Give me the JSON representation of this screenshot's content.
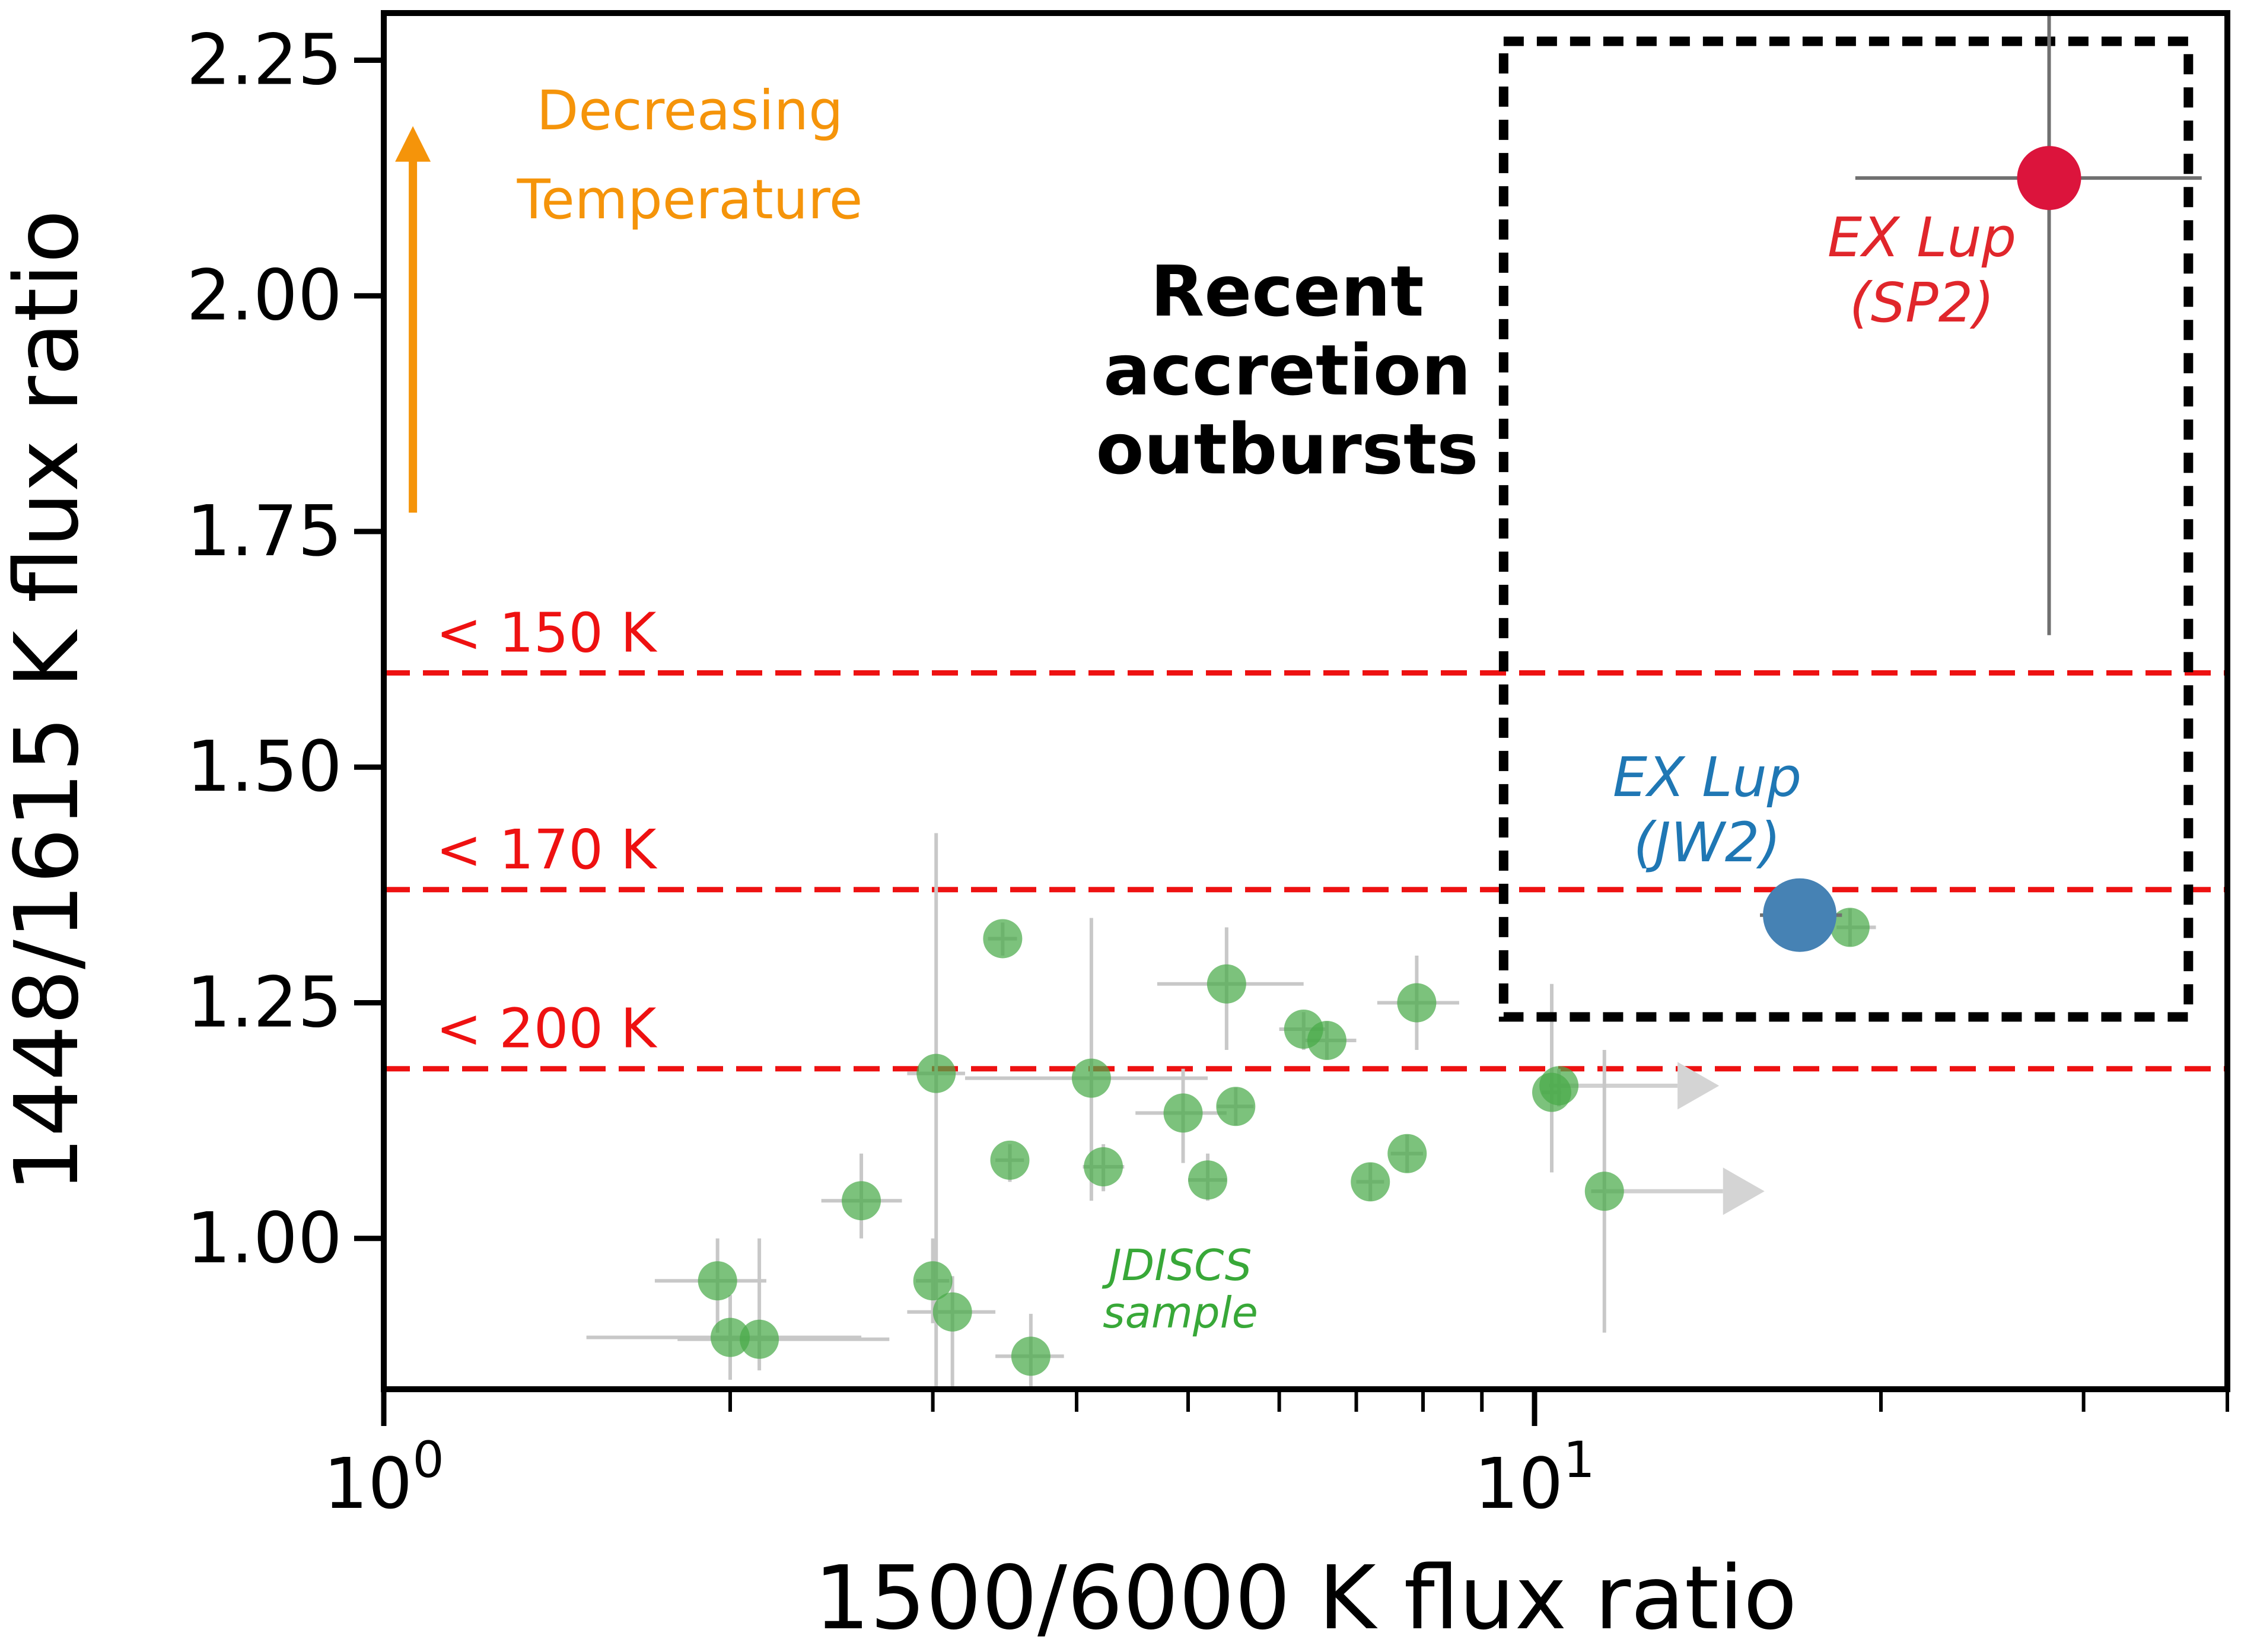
{
  "chart_data": {
    "type": "scatter",
    "title": "",
    "xlabel": "1500/6000 K flux ratio",
    "ylabel": "1448/1615 K flux ratio",
    "xscale": "log",
    "xlim": [
      1.0,
      40.0
    ],
    "ylim": [
      0.84,
      2.3
    ],
    "xticks_major": [
      {
        "value": 1,
        "label": "10",
        "sup": "0"
      },
      {
        "value": 10,
        "label": "10",
        "sup": "1"
      }
    ],
    "xticks_minor": [
      2,
      3,
      4,
      5,
      6,
      7,
      8,
      9,
      20,
      30,
      40
    ],
    "yticks": [
      {
        "value": 1.0,
        "label": "1.00"
      },
      {
        "value": 1.25,
        "label": "1.25"
      },
      {
        "value": 1.5,
        "label": "1.50"
      },
      {
        "value": 1.75,
        "label": "1.75"
      },
      {
        "value": 2.0,
        "label": "2.00"
      },
      {
        "value": 2.25,
        "label": "2.25"
      }
    ],
    "grid": false,
    "colors": {
      "sample": "#4aaa4a",
      "sample_errorbar": "#c8c8c8",
      "sp2": "#dc143c",
      "sp2_text": "#e0262b",
      "jw2": "#4682b4",
      "jw2_text": "#1f77b4",
      "threshold": "#ee1111",
      "arrow": "#f5940a",
      "box": "#000000",
      "sample_text": "#38a838"
    },
    "thresholds": [
      {
        "y": 1.6,
        "label": "< 150 K"
      },
      {
        "y": 1.37,
        "label": "< 170 K"
      },
      {
        "y": 1.18,
        "label": "< 200 K"
      }
    ],
    "sample_label": [
      "JDISCS",
      "sample"
    ],
    "sample": [
      {
        "x": 1.95,
        "y": 0.955,
        "xlo": 1.72,
        "xhi": 2.15,
        "ylo": 0.9,
        "yhi": 1.0
      },
      {
        "x": 2.0,
        "y": 0.895,
        "xlo": 1.5,
        "xhi": 2.6,
        "ylo": 0.85,
        "yhi": 0.94
      },
      {
        "x": 2.12,
        "y": 0.893,
        "xlo": 1.8,
        "xhi": 2.75,
        "ylo": 0.86,
        "yhi": 1.0
      },
      {
        "x": 2.6,
        "y": 1.04,
        "xlo": 2.4,
        "xhi": 2.82,
        "ylo": 1.0,
        "yhi": 1.09
      },
      {
        "x": 3.0,
        "y": 0.955,
        "xlo": 2.9,
        "xhi": 3.1,
        "ylo": 0.91,
        "yhi": 1.0
      },
      {
        "x": 3.02,
        "y": 1.175,
        "xlo": 2.85,
        "xhi": 3.2,
        "ylo": 0.84,
        "yhi": 1.43
      },
      {
        "x": 3.12,
        "y": 0.922,
        "xlo": 2.85,
        "xhi": 3.4,
        "ylo": 0.84,
        "yhi": 0.96
      },
      {
        "x": 3.45,
        "y": 1.318,
        "xlo": 3.35,
        "xhi": 3.55,
        "ylo": 1.3,
        "yhi": 1.335
      },
      {
        "x": 3.5,
        "y": 1.083,
        "xlo": 3.4,
        "xhi": 3.6,
        "ylo": 1.06,
        "yhi": 1.1
      },
      {
        "x": 3.65,
        "y": 0.875,
        "xlo": 3.4,
        "xhi": 3.9,
        "ylo": 0.84,
        "yhi": 0.92
      },
      {
        "x": 4.12,
        "y": 1.17,
        "xlo": 3.2,
        "xhi": 5.2,
        "ylo": 1.04,
        "yhi": 1.34
      },
      {
        "x": 4.22,
        "y": 1.076,
        "xlo": 4.05,
        "xhi": 4.4,
        "ylo": 1.05,
        "yhi": 1.1
      },
      {
        "x": 4.95,
        "y": 1.133,
        "xlo": 4.5,
        "xhi": 5.4,
        "ylo": 1.08,
        "yhi": 1.18
      },
      {
        "x": 5.2,
        "y": 1.062,
        "xlo": 5.0,
        "xhi": 5.4,
        "ylo": 1.04,
        "yhi": 1.09
      },
      {
        "x": 5.4,
        "y": 1.27,
        "xlo": 4.7,
        "xhi": 6.3,
        "ylo": 1.2,
        "yhi": 1.33
      },
      {
        "x": 5.5,
        "y": 1.14,
        "xlo": 5.3,
        "xhi": 5.7,
        "ylo": 1.12,
        "yhi": 1.16
      },
      {
        "x": 6.3,
        "y": 1.222,
        "xlo": 6.0,
        "xhi": 6.6,
        "ylo": 1.2,
        "yhi": 1.24
      },
      {
        "x": 6.6,
        "y": 1.21,
        "xlo": 6.3,
        "xhi": 7.0,
        "ylo": 1.19,
        "yhi": 1.23
      },
      {
        "x": 7.2,
        "y": 1.06,
        "xlo": 7.0,
        "xhi": 7.4,
        "ylo": 1.04,
        "yhi": 1.08
      },
      {
        "x": 7.75,
        "y": 1.09,
        "xlo": 7.5,
        "xhi": 8.0,
        "ylo": 1.07,
        "yhi": 1.11
      },
      {
        "x": 7.9,
        "y": 1.25,
        "xlo": 7.3,
        "xhi": 8.6,
        "ylo": 1.2,
        "yhi": 1.3
      },
      {
        "x": 10.35,
        "y": 1.155,
        "xlo": 10.15,
        "xhi": 10.55,
        "ylo": 1.07,
        "yhi": 1.27
      },
      {
        "x": 10.5,
        "y": 1.162,
        "xlo": 10.3,
        "xhi": 10.7,
        "ylo": 1.14,
        "yhi": 1.18,
        "arrow_right": true
      },
      {
        "x": 11.5,
        "y": 1.05,
        "xlo": 11.2,
        "xhi": 11.8,
        "ylo": 0.9,
        "yhi": 1.2,
        "arrow_right": true
      },
      {
        "x": 18.8,
        "y": 1.33,
        "xlo": 18.3,
        "xhi": 19.8,
        "ylo": 1.31,
        "yhi": 1.35
      }
    ],
    "highlight": [
      {
        "name": "EX Lup (SP2)",
        "line1": "EX Lup",
        "line2": "(SP2)",
        "x": 28.0,
        "y": 2.125,
        "xlo": 19.0,
        "xhi": 38.0,
        "ylo": 1.64,
        "yhi": 2.3,
        "color_key": "sp2"
      },
      {
        "name": "EX Lup (JW2)",
        "line1": "EX Lup",
        "line2": "(JW2)",
        "x": 17.0,
        "y": 1.343,
        "xlo": 15.7,
        "xhi": 18.5,
        "ylo": 1.335,
        "yhi": 1.35,
        "color_key": "jw2"
      }
    ],
    "box": {
      "x0": 9.4,
      "x1": 37.0,
      "y0": 1.235,
      "y1": 2.27,
      "label": [
        "Recent",
        "accretion",
        "outbursts"
      ]
    },
    "temperature_arrow": {
      "x": 1.06,
      "y_from": 1.77,
      "y_to": 2.18,
      "label": [
        "Decreasing",
        "Temperature"
      ]
    }
  }
}
